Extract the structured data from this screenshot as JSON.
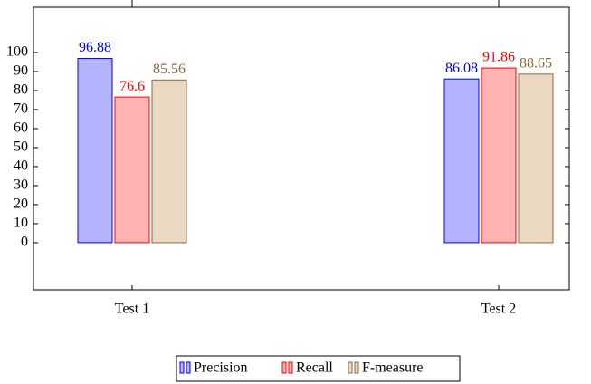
{
  "chart_data": {
    "type": "bar",
    "categories": [
      "Test 1",
      "Test 2"
    ],
    "series": [
      {
        "name": "Precision",
        "color": "#0000ff",
        "fill": "#b3b3ff",
        "values": [
          96.88,
          86.08
        ]
      },
      {
        "name": "Recall",
        "color": "#ff0000",
        "fill": "#ffb3b3",
        "values": [
          76.6,
          91.86
        ]
      },
      {
        "name": "F-measure",
        "color": "#8b6a44",
        "fill": "#ead8c3",
        "values": [
          85.56,
          88.65
        ]
      }
    ],
    "ylim": [
      -24.8,
      123.8
    ],
    "yticks": [
      0,
      10,
      20,
      30,
      40,
      50,
      60,
      70,
      80,
      90,
      100
    ],
    "legend": "bottom"
  }
}
